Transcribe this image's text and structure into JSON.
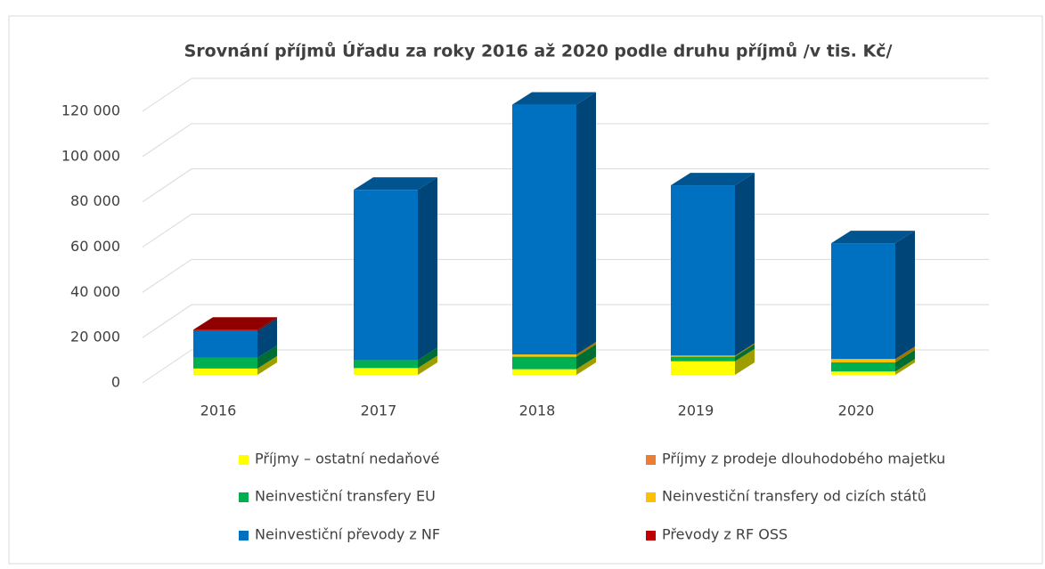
{
  "chart_data": {
    "type": "bar3d_stacked",
    "title": "Srovnání příjmů Úřadu za roky 2016 až 2020 podle druhu příjmů /v tis. Kč/",
    "categories": [
      "2016",
      "2017",
      "2018",
      "2019",
      "2020"
    ],
    "series": [
      {
        "name": "Příjmy – ostatní nedaňové",
        "color": "#ffff00",
        "values": [
          2800,
          3000,
          2500,
          6000,
          1500
        ]
      },
      {
        "name": "Příjmy z prodeje dlouhodobého majetku",
        "color": "#ed7d31",
        "values": [
          0,
          0,
          0,
          0,
          0
        ]
      },
      {
        "name": "Neinvestiční transfery EU",
        "color": "#00b050",
        "values": [
          4700,
          3500,
          5500,
          2000,
          4000
        ]
      },
      {
        "name": "Neinvestiční transfery od cizích států",
        "color": "#ffc000",
        "values": [
          0,
          0,
          1000,
          500,
          1500
        ]
      },
      {
        "name": "Neinvestiční převody z NF",
        "color": "#0070c0",
        "values": [
          11800,
          75000,
          110000,
          75000,
          51000
        ]
      },
      {
        "name": "Převody z RF OSS",
        "color": "#c00000",
        "values": [
          600,
          0,
          0,
          0,
          0
        ]
      }
    ],
    "ylim": [
      0,
      120000
    ],
    "yticks": [
      0,
      {
        "value": 20000,
        "label": "20 000"
      },
      {
        "value": 40000,
        "label": "40 000"
      },
      {
        "value": 60000,
        "label": "60 000"
      },
      {
        "value": 80000,
        "label": "80 000"
      },
      {
        "value": 100000,
        "label": "100 000"
      },
      {
        "value": 120000,
        "label": "120 000"
      }
    ],
    "grid": true
  }
}
